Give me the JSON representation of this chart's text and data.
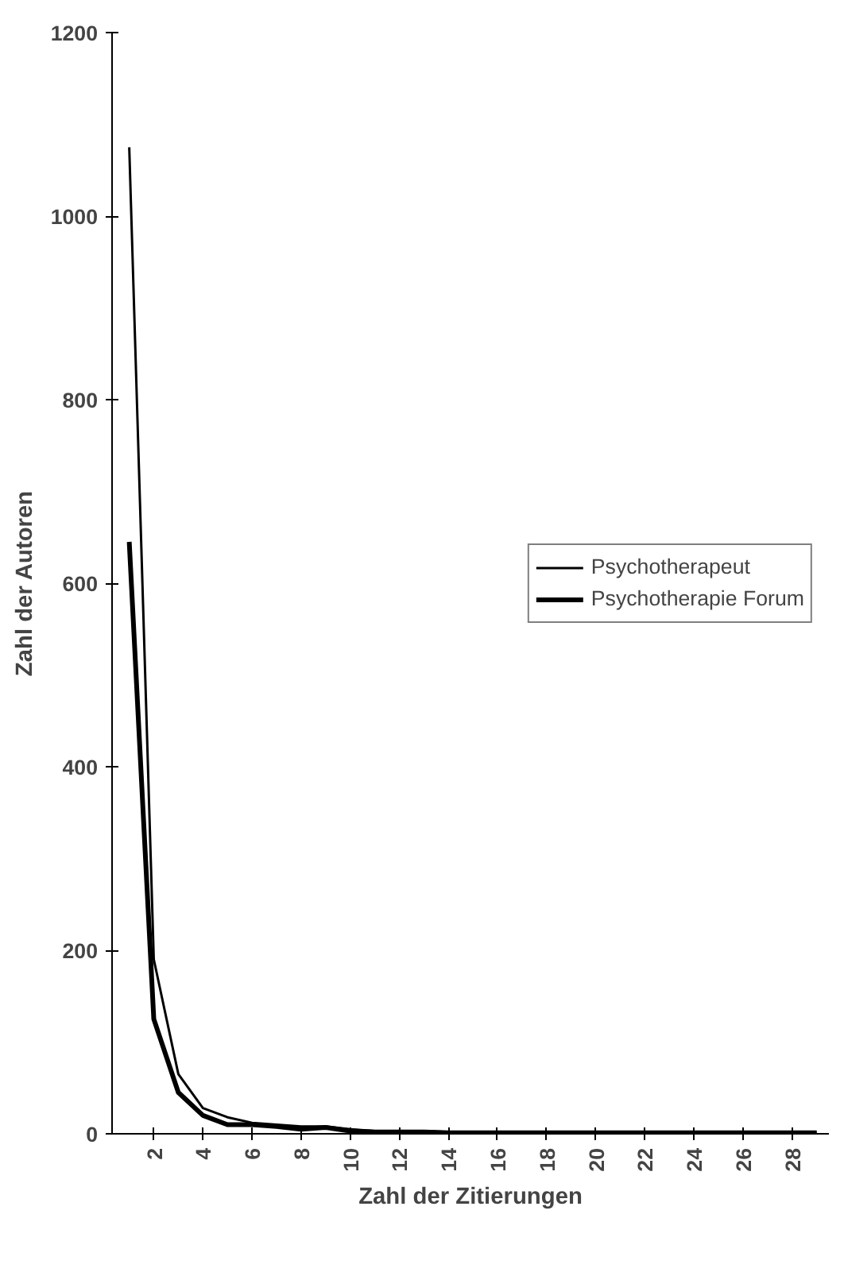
{
  "chart_data": {
    "type": "line",
    "xlabel": "Zahl der Zitierungen",
    "ylabel": "Zahl der Autoren",
    "categories": [
      null,
      "2",
      null,
      "4",
      null,
      "6",
      null,
      "8",
      null,
      "10",
      null,
      "12",
      null,
      "14",
      null,
      "16",
      null,
      "18",
      null,
      "20",
      null,
      "22",
      null,
      "24",
      null,
      "26",
      null,
      "28",
      null
    ],
    "series": [
      {
        "name": "Psychotherapeut",
        "color": "#000000",
        "values": [
          1075,
          190,
          65,
          28,
          18,
          12,
          10,
          8,
          8,
          5,
          3,
          3,
          3,
          2,
          2,
          2,
          2,
          2,
          2,
          2,
          2,
          2,
          2,
          2,
          2,
          2,
          2,
          2,
          2
        ]
      },
      {
        "name": "Psychotherapie Forum",
        "color": "#000000",
        "values": [
          645,
          125,
          45,
          20,
          10,
          10,
          8,
          5,
          7,
          3,
          2,
          2,
          2,
          1,
          1,
          1,
          1,
          1,
          1,
          1,
          1,
          1,
          1,
          1,
          1,
          1,
          1,
          1,
          1
        ]
      }
    ],
    "ylim": [
      0,
      1200
    ],
    "yticks": [
      0,
      200,
      400,
      600,
      800,
      1000,
      1200
    ],
    "grid": false,
    "legend": "right",
    "marker": "none",
    "line_style": "solid"
  }
}
